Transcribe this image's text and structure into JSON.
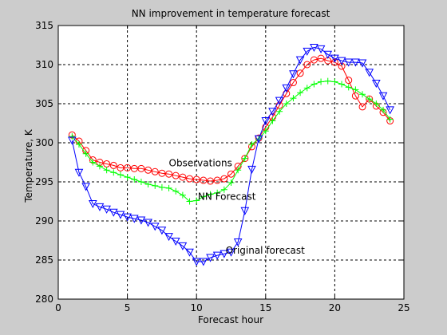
{
  "chart_data": {
    "type": "line",
    "title": "NN improvement in temperature forecast",
    "xlabel": "Forecast hour",
    "ylabel": "Temperature, K",
    "xlim": [
      0,
      25
    ],
    "ylim": [
      280,
      315
    ],
    "xticks": [
      0,
      5,
      10,
      15,
      20,
      25
    ],
    "yticks": [
      280,
      285,
      290,
      295,
      300,
      305,
      310,
      315
    ],
    "grid": true,
    "legend": "none",
    "series": [
      {
        "name": "Observations",
        "color": "#ff0000",
        "marker": "circle",
        "x": [
          1,
          1.5,
          2,
          2.5,
          3,
          3.5,
          4,
          4.5,
          5,
          5.5,
          6,
          6.5,
          7,
          7.5,
          8,
          8.5,
          9,
          9.5,
          10,
          10.5,
          11,
          11.5,
          12,
          12.5,
          13,
          13.5,
          14,
          14.5,
          15,
          15.5,
          16,
          16.5,
          17,
          17.5,
          18,
          18.5,
          19,
          19.5,
          20,
          20.5,
          21,
          21.5,
          22,
          22.5,
          23,
          23.5,
          24
        ],
        "y": [
          301,
          300.2,
          299,
          297.8,
          297.5,
          297.3,
          297.1,
          296.8,
          296.8,
          296.7,
          296.7,
          296.5,
          296.3,
          296.1,
          296.0,
          295.8,
          295.6,
          295.4,
          295.3,
          295.2,
          295.1,
          295.2,
          295.4,
          296.0,
          297.0,
          298.0,
          299.5,
          300.6,
          302.0,
          303.3,
          304.8,
          306.3,
          307.7,
          308.9,
          310.0,
          310.6,
          310.8,
          310.5,
          310.3,
          309.8,
          308.0,
          306.0,
          304.6,
          305.6,
          304.7,
          303.9,
          302.8
        ]
      },
      {
        "name": "NN Forecast",
        "color": "#00ff00",
        "marker": "plus",
        "x": [
          1,
          1.5,
          2,
          2.5,
          3,
          3.5,
          4,
          4.5,
          5,
          5.5,
          6,
          6.5,
          7,
          7.5,
          8,
          8.5,
          9,
          9.5,
          10,
          10.5,
          11,
          11.5,
          12,
          12.5,
          13,
          13.5,
          14,
          14.5,
          15,
          15.5,
          16,
          16.5,
          17,
          17.5,
          18,
          18.5,
          19,
          19.5,
          20,
          20.5,
          21,
          21.5,
          22,
          22.5,
          23,
          23.5,
          24
        ],
        "y": [
          300.8,
          299.8,
          298.6,
          297.5,
          297.0,
          296.5,
          296.2,
          295.9,
          295.6,
          295.3,
          295.0,
          294.7,
          294.5,
          294.3,
          294.2,
          293.8,
          293.3,
          292.5,
          292.6,
          293.1,
          293.4,
          293.6,
          294.0,
          294.9,
          296.5,
          298.0,
          299.8,
          300.5,
          301.5,
          302.8,
          304.0,
          305.0,
          305.7,
          306.4,
          307.0,
          307.5,
          307.8,
          307.9,
          307.8,
          307.5,
          307.1,
          306.8,
          306.2,
          305.6,
          305.0,
          304.2,
          303.0
        ]
      },
      {
        "name": "Original forecast",
        "color": "#0000ff",
        "marker": "triangle-down",
        "x": [
          1,
          1.5,
          2,
          2.5,
          3,
          3.5,
          4,
          4.5,
          5,
          5.5,
          6,
          6.5,
          7,
          7.5,
          8,
          8.5,
          9,
          9.5,
          10,
          10.5,
          11,
          11.5,
          12,
          12.5,
          13,
          13.5,
          14,
          14.5,
          15,
          15.5,
          16,
          16.5,
          17,
          17.5,
          18,
          18.5,
          19,
          19.5,
          20,
          20.5,
          21,
          21.5,
          22,
          22.5,
          23,
          23.5,
          24
        ],
        "y": [
          300.3,
          296.2,
          294.4,
          292.2,
          291.8,
          291.5,
          291.1,
          290.8,
          290.5,
          290.3,
          290.1,
          289.8,
          289.3,
          288.8,
          288.0,
          287.4,
          286.8,
          286.0,
          284.8,
          284.8,
          285.3,
          285.6,
          285.8,
          286.0,
          287.3,
          291.3,
          296.6,
          300.5,
          302.8,
          304.0,
          305.4,
          307.0,
          308.8,
          310.6,
          311.7,
          312.2,
          312.0,
          311.3,
          310.8,
          310.5,
          310.3,
          310.3,
          310.2,
          309.0,
          307.6,
          306.0,
          304.2
        ]
      }
    ],
    "annotations": [
      {
        "text": "Observations",
        "x": 8,
        "y": 297
      },
      {
        "text": "NN Forecast",
        "x": 10.1,
        "y": 292.7
      },
      {
        "text": "Original forecast",
        "x": 12.1,
        "y": 285.8
      }
    ]
  }
}
